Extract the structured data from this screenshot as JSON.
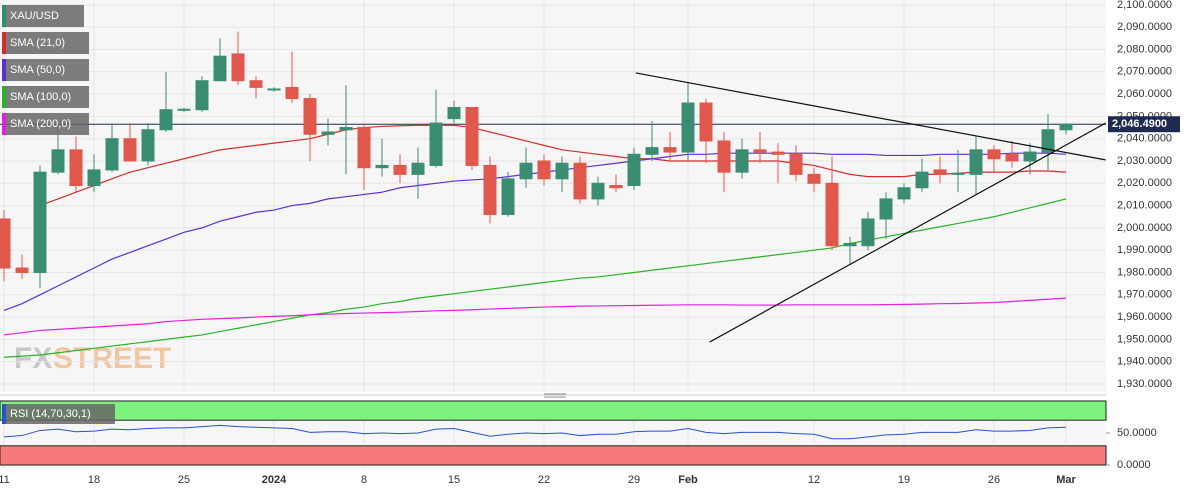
{
  "chart_data": [
    {
      "type": "candlestick",
      "categories": [
        "11",
        null,
        null,
        null,
        null,
        "18",
        null,
        null,
        null,
        null,
        "25",
        null,
        null,
        null,
        null,
        "2024",
        null,
        null,
        null,
        null,
        "8",
        null,
        null,
        null,
        null,
        "15",
        null,
        null,
        null,
        null,
        "22",
        null,
        null,
        null,
        null,
        "29",
        null,
        null,
        "Feb",
        null,
        null,
        null,
        null,
        null,
        null,
        "12",
        null,
        null,
        null,
        null,
        "19",
        null,
        null,
        null,
        null,
        "26",
        null,
        null,
        null,
        "Mar"
      ],
      "series": [
        {
          "name": "XAU/USD",
          "color": "#2f8d76",
          "up_color": "#3a8c73",
          "down_color": "#e0584b",
          "open": [
            2004,
            1982,
            1980,
            2025,
            2035,
            2019,
            2026,
            2040,
            2030,
            2044,
            2053,
            2053,
            2066,
            2078,
            2066,
            2062,
            2063,
            2058,
            2042,
            2044,
            2045,
            2027,
            2028,
            2024,
            2028,
            2049,
            2054,
            2028,
            2006,
            2022,
            2030,
            2022,
            2029,
            2013,
            2019,
            2019,
            2033,
            2036,
            2034,
            2056,
            2039,
            2025,
            2035,
            2034,
            2033,
            2024,
            2020,
            1992,
            1992,
            2004,
            2013,
            2018,
            2026,
            2024,
            2024,
            2035,
            2033,
            2030,
            2034,
            2044
          ],
          "high": [
            2008,
            1988,
            2028,
            2045,
            2041,
            2033,
            2047,
            2047,
            2047,
            2070,
            2054,
            2068,
            2085,
            2088,
            2068,
            2063,
            2079,
            2060,
            2049,
            2064,
            2047,
            2040,
            2033,
            2036,
            2062,
            2057,
            2054,
            2032,
            2025,
            2036,
            2033,
            2032,
            2032,
            2023,
            2024,
            2036,
            2048,
            2043,
            2065,
            2058,
            2043,
            2040,
            2043,
            2038,
            2037,
            2027,
            2032,
            1996,
            2007,
            2016,
            2020,
            2031,
            2032,
            2035,
            2041,
            2037,
            2039,
            2038,
            2051,
            2047
          ],
          "low": [
            1976,
            1977,
            1973,
            2024,
            2016,
            2016,
            2025,
            2030,
            2028,
            2043,
            2052,
            2052,
            2066,
            2064,
            2058,
            2061,
            2056,
            2030,
            2037,
            2024,
            2017,
            2023,
            2020,
            2013,
            2027,
            2047,
            2026,
            2002,
            2005,
            2018,
            2019,
            2016,
            2011,
            2010,
            2016,
            2017,
            2030,
            2030,
            2030,
            2029,
            2016,
            2022,
            2029,
            2020,
            2021,
            2016,
            1990,
            1984,
            1990,
            1995,
            2011,
            2016,
            2020,
            2016,
            2015,
            2025,
            2027,
            2024,
            2026,
            2042
          ],
          "close": [
            1982,
            1980,
            2025,
            2035,
            2019,
            2026,
            2040,
            2030,
            2044,
            2053,
            2053.2,
            2066,
            2077,
            2066,
            2063,
            2062.3,
            2058,
            2042,
            2043,
            2045,
            2027,
            2028,
            2024,
            2029,
            2047,
            2054,
            2028,
            2006,
            2022,
            2029,
            2022,
            2029,
            2013,
            2020,
            2018,
            2033,
            2036,
            2034,
            2056,
            2039,
            2025,
            2035,
            2034,
            2033,
            2024,
            2020,
            1992,
            1993,
            2004,
            2013,
            2018,
            2025,
            2024,
            2024.5,
            2035,
            2031,
            2030,
            2034,
            2044,
            2046.49
          ]
        }
      ],
      "overlays": [
        {
          "name": "SMA (21,0)",
          "color": "#d42d2d",
          "values": [
            null,
            null,
            2010,
            2013,
            2016,
            2019,
            2022,
            2025,
            2027,
            2029,
            2031,
            2033,
            2035,
            2036,
            2037,
            2038,
            2039,
            2040,
            2042,
            2044,
            2045,
            2045.5,
            2045.8,
            2046,
            2046,
            2046,
            2045,
            2043,
            2041,
            2039,
            2037,
            2035,
            2034,
            2033,
            2032,
            2031,
            2031,
            2030,
            2030,
            2030,
            2030,
            2030,
            2030,
            2030,
            2029,
            2028,
            2026,
            2024,
            2023,
            2023,
            2023,
            2024,
            2024,
            2024.5,
            2025,
            2025,
            2025,
            2025.5,
            2025.5,
            2025
          ]
        },
        {
          "name": "SMA (50,0)",
          "color": "#5b2fd1",
          "values": [
            1963,
            1966,
            1970,
            1974,
            1978,
            1982,
            1986,
            1989,
            1992,
            1995,
            1998,
            2000,
            2003,
            2005,
            2007,
            2008,
            2010,
            2011,
            2013,
            2014,
            2015,
            2016,
            2018,
            2019,
            2020,
            2021,
            2021.5,
            2022,
            2023,
            2024,
            2025,
            2026,
            2027,
            2028,
            2029,
            2030,
            2031,
            2032,
            2033,
            2033,
            2033.5,
            2033.5,
            2033.5,
            2033.5,
            2033.5,
            2033.5,
            2033,
            2033,
            2033,
            2032.5,
            2032.5,
            2032.5,
            2033,
            2033,
            2033,
            2033,
            2033.5,
            2033.5,
            2033.5,
            2033
          ]
        },
        {
          "name": "SMA (100,0)",
          "color": "#27b427",
          "values": [
            1942,
            1942.5,
            1943,
            1944,
            1945,
            1946,
            1947,
            1948,
            1949,
            1950,
            1951,
            1952,
            1953.5,
            1955,
            1956.5,
            1958,
            1959.5,
            1961,
            1962,
            1963.5,
            1964.5,
            1966,
            1967,
            1968.5,
            1969.5,
            1970.5,
            1971.5,
            1972.5,
            1973.5,
            1974.5,
            1975.5,
            1976.5,
            1977.5,
            1978,
            1979,
            1980,
            1981,
            1982,
            1983,
            1984,
            1985,
            1986,
            1987,
            1988,
            1989,
            1990,
            1991,
            1993,
            1994.5,
            1996,
            1997.5,
            1999,
            2000.5,
            2002,
            2003.5,
            2005,
            2007,
            2009,
            2011,
            2013
          ]
        },
        {
          "name": "SMA (200,0)",
          "color": "#e020e0",
          "values": [
            1952,
            1953,
            1954,
            1954.5,
            1955,
            1955.5,
            1956,
            1956.5,
            1957,
            1958,
            1958.5,
            1959,
            1959.3,
            1959.6,
            1960,
            1960.3,
            1960.6,
            1961,
            1961.3,
            1961.6,
            1961.8,
            1962,
            1962.2,
            1962.5,
            1962.8,
            1963,
            1963.3,
            1963.6,
            1963.9,
            1964.2,
            1964.5,
            1964.7,
            1964.9,
            1965,
            1965.1,
            1965.2,
            1965.3,
            1965.4,
            1965.5,
            1965.5,
            1965.5,
            1965.4,
            1965.4,
            1965.4,
            1965.5,
            1965.5,
            1965.5,
            1965.5,
            1965.5,
            1965.6,
            1965.7,
            1965.8,
            1966,
            1966.1,
            1966.3,
            1966.5,
            1967,
            1967.5,
            1968,
            1968.5
          ]
        }
      ],
      "trendlines": [
        {
          "x": [
            35.1,
            61.2
          ],
          "y": [
            2069.5,
            2030.5
          ]
        },
        {
          "x": [
            39.2,
            61.2
          ],
          "y": [
            1948.8,
            2047
          ]
        }
      ],
      "last_price": {
        "value": 2046.49,
        "label": "2,046.4900"
      },
      "ylim": [
        1926.4,
        2102.2
      ],
      "yticks": [
        {
          "value": 1930,
          "label": "1,930.0000"
        },
        {
          "value": 1940,
          "label": "1,940.0000"
        },
        {
          "value": 1950,
          "label": "1,950.0000"
        },
        {
          "value": 1960,
          "label": "1,960.0000"
        },
        {
          "value": 1970,
          "label": "1,970.0000"
        },
        {
          "value": 1980,
          "label": "1,980.0000"
        },
        {
          "value": 1990,
          "label": "1,990.0000"
        },
        {
          "value": 2000,
          "label": "2,000.0000"
        },
        {
          "value": 2010,
          "label": "2,010.0000"
        },
        {
          "value": 2020,
          "label": "2,020.0000"
        },
        {
          "value": 2030,
          "label": "2,030.0000"
        },
        {
          "value": 2040,
          "label": "2,040.0000"
        },
        {
          "value": 2050,
          "label": "2,050.0000"
        },
        {
          "value": 2060,
          "label": "2,060.0000"
        },
        {
          "value": 2070,
          "label": "2,070.0000"
        },
        {
          "value": 2080,
          "label": "2,080.0000"
        },
        {
          "value": 2090,
          "label": "2,090.0000"
        },
        {
          "value": 2100,
          "label": "2,100.0000"
        }
      ],
      "watermark": [
        "FX",
        "STREET"
      ]
    },
    {
      "type": "line",
      "series": [
        {
          "name": "RSI (14,70,30,1)",
          "color": "#2a4fd0",
          "values": [
            44,
            46,
            54,
            56,
            52,
            53,
            56,
            55,
            57,
            58,
            58,
            60,
            62,
            60,
            59,
            58,
            57,
            51,
            52,
            52,
            49,
            50,
            49,
            50,
            56,
            57,
            51,
            45,
            48,
            50,
            49,
            50,
            46,
            48,
            48,
            52,
            53,
            53,
            57,
            51,
            49,
            51,
            51,
            51,
            49,
            48,
            41,
            41,
            44,
            47,
            48,
            51,
            51,
            51,
            55,
            53,
            53,
            54,
            58,
            59
          ]
        }
      ],
      "bands": {
        "upper": 70,
        "lower": 30,
        "upper_color": "#7ef27e",
        "lower_color": "#f77878"
      },
      "ylim": [
        0,
        100
      ],
      "yticks": [
        {
          "value": 0,
          "label": "0.0000"
        },
        {
          "value": 50,
          "label": "50.0000"
        }
      ]
    }
  ]
}
